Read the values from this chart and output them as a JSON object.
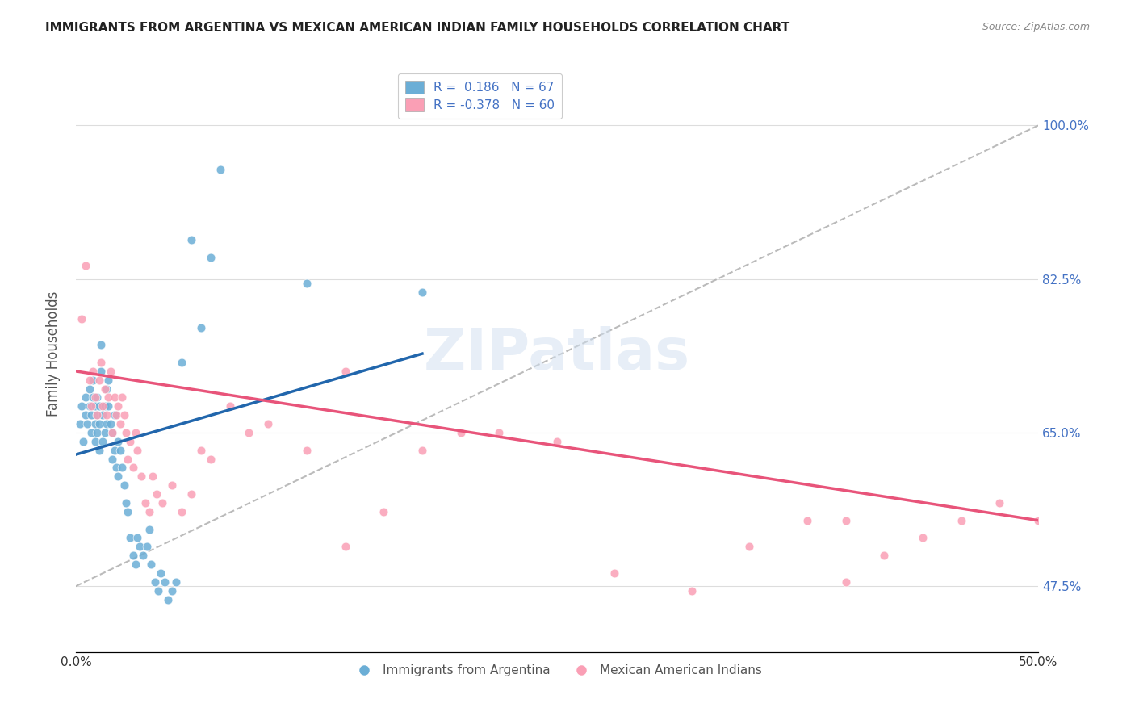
{
  "title": "IMMIGRANTS FROM ARGENTINA VS MEXICAN AMERICAN INDIAN FAMILY HOUSEHOLDS CORRELATION CHART",
  "source": "Source: ZipAtlas.com",
  "xlabel": "",
  "ylabel": "Family Households",
  "xmin": 0.0,
  "xmax": 0.5,
  "ytick_labels": [
    "47.5%",
    "65.0%",
    "82.5%",
    "100.0%"
  ],
  "ytick_values": [
    0.475,
    0.65,
    0.825,
    1.0
  ],
  "xtick_labels": [
    "0.0%",
    "",
    "",
    "",
    "",
    "50.0%"
  ],
  "legend_r1": "R =  0.186   N = 67",
  "legend_r2": "R = -0.378   N = 60",
  "color_blue": "#6baed6",
  "color_pink": "#fa9fb5",
  "color_line_blue": "#2166ac",
  "color_line_pink": "#e8547a",
  "color_line_dashed": "#aaaaaa",
  "watermark": "ZIPatlas",
  "blue_scatter_x": [
    0.002,
    0.003,
    0.004,
    0.005,
    0.005,
    0.006,
    0.007,
    0.007,
    0.008,
    0.008,
    0.009,
    0.009,
    0.01,
    0.01,
    0.01,
    0.011,
    0.011,
    0.011,
    0.012,
    0.012,
    0.012,
    0.013,
    0.013,
    0.014,
    0.014,
    0.015,
    0.015,
    0.016,
    0.016,
    0.017,
    0.017,
    0.018,
    0.019,
    0.019,
    0.02,
    0.02,
    0.021,
    0.022,
    0.022,
    0.023,
    0.024,
    0.025,
    0.026,
    0.027,
    0.028,
    0.03,
    0.031,
    0.032,
    0.033,
    0.035,
    0.037,
    0.038,
    0.039,
    0.041,
    0.043,
    0.044,
    0.046,
    0.048,
    0.05,
    0.052,
    0.055,
    0.06,
    0.065,
    0.07,
    0.075,
    0.12,
    0.18
  ],
  "blue_scatter_y": [
    0.66,
    0.68,
    0.64,
    0.67,
    0.69,
    0.66,
    0.68,
    0.7,
    0.65,
    0.67,
    0.69,
    0.71,
    0.64,
    0.66,
    0.68,
    0.65,
    0.67,
    0.69,
    0.63,
    0.66,
    0.68,
    0.72,
    0.75,
    0.64,
    0.67,
    0.65,
    0.68,
    0.7,
    0.66,
    0.68,
    0.71,
    0.66,
    0.62,
    0.65,
    0.63,
    0.67,
    0.61,
    0.6,
    0.64,
    0.63,
    0.61,
    0.59,
    0.57,
    0.56,
    0.53,
    0.51,
    0.5,
    0.53,
    0.52,
    0.51,
    0.52,
    0.54,
    0.5,
    0.48,
    0.47,
    0.49,
    0.48,
    0.46,
    0.47,
    0.48,
    0.73,
    0.87,
    0.77,
    0.85,
    0.95,
    0.82,
    0.81
  ],
  "pink_scatter_x": [
    0.003,
    0.005,
    0.007,
    0.008,
    0.009,
    0.01,
    0.011,
    0.012,
    0.013,
    0.014,
    0.015,
    0.016,
    0.017,
    0.018,
    0.019,
    0.02,
    0.021,
    0.022,
    0.023,
    0.024,
    0.025,
    0.026,
    0.027,
    0.028,
    0.03,
    0.031,
    0.032,
    0.034,
    0.036,
    0.038,
    0.04,
    0.042,
    0.045,
    0.05,
    0.055,
    0.06,
    0.065,
    0.07,
    0.08,
    0.09,
    0.1,
    0.12,
    0.14,
    0.16,
    0.18,
    0.2,
    0.22,
    0.25,
    0.28,
    0.32,
    0.35,
    0.38,
    0.4,
    0.42,
    0.44,
    0.46,
    0.48,
    0.5,
    0.14,
    0.4
  ],
  "pink_scatter_y": [
    0.78,
    0.84,
    0.71,
    0.68,
    0.72,
    0.69,
    0.67,
    0.71,
    0.73,
    0.68,
    0.7,
    0.67,
    0.69,
    0.72,
    0.65,
    0.69,
    0.67,
    0.68,
    0.66,
    0.69,
    0.67,
    0.65,
    0.62,
    0.64,
    0.61,
    0.65,
    0.63,
    0.6,
    0.57,
    0.56,
    0.6,
    0.58,
    0.57,
    0.59,
    0.56,
    0.58,
    0.63,
    0.62,
    0.68,
    0.65,
    0.66,
    0.63,
    0.72,
    0.56,
    0.63,
    0.65,
    0.65,
    0.64,
    0.49,
    0.47,
    0.52,
    0.55,
    0.48,
    0.51,
    0.53,
    0.55,
    0.57,
    0.55,
    0.52,
    0.55
  ],
  "blue_line_x": [
    0.0,
    0.18
  ],
  "blue_line_y": [
    0.625,
    0.74
  ],
  "pink_line_x": [
    0.0,
    0.5
  ],
  "pink_line_y": [
    0.72,
    0.55
  ],
  "dashed_line_x": [
    0.0,
    0.5
  ],
  "dashed_line_y": [
    0.475,
    1.0
  ]
}
